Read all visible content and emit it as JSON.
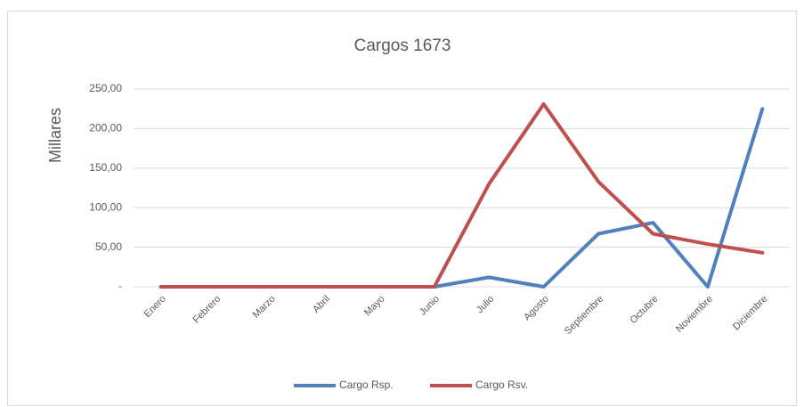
{
  "chart_data": {
    "type": "line",
    "title": "Cargos 1673",
    "y_label": "Millares",
    "categories": [
      "Enero",
      "Febrero",
      "Marzo",
      "Abril",
      "Mayo",
      "Junio",
      "Julio",
      "Agosto",
      "Septiembre",
      "Octubre",
      "Noviembre",
      "Diciembre"
    ],
    "series": [
      {
        "name": "Cargo Rsp.",
        "color": "#4f81bd",
        "values": [
          0,
          0,
          0,
          0,
          0,
          0,
          12,
          0,
          67,
          81,
          0,
          225
        ]
      },
      {
        "name": "Cargo Rsv.",
        "color": "#c0504d",
        "values": [
          0,
          0,
          0,
          0,
          0,
          0,
          130,
          231,
          133,
          67,
          54,
          43
        ]
      }
    ],
    "ylim": [
      0,
      250
    ],
    "yticks": [
      {
        "value": 0,
        "label": "-"
      },
      {
        "value": 50,
        "label": "50,00"
      },
      {
        "value": 100,
        "label": "100,00"
      },
      {
        "value": 150,
        "label": "150,00"
      },
      {
        "value": 200,
        "label": "200,00"
      },
      {
        "value": 250,
        "label": "250,00"
      }
    ],
    "grid": true,
    "legend": "bottom"
  }
}
